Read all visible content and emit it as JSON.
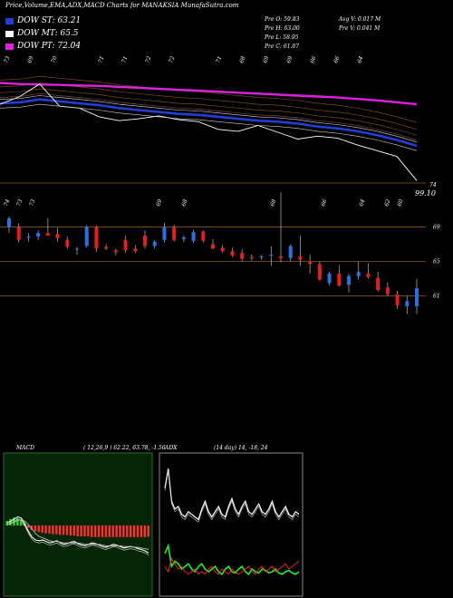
{
  "header": {
    "title": "Price,Volume,EMA,ADX,MACD Charts for MANAKSIA MunafaSutra.com"
  },
  "legend": [
    {
      "label": "DOW ST: 63.21",
      "color": "#1f3fd6"
    },
    {
      "label": "DOW MT: 65.5",
      "color": "#ffffff"
    },
    {
      "label": "DOW PT: 72.04",
      "color": "#e020e0"
    }
  ],
  "ohlc": {
    "open": "Pre  O: 59.83",
    "high": "Pre  H: 63.00",
    "low": "Pre  L: 58.95",
    "close": "Pre  C: 61.87",
    "avg_vol": "Avg V: 0.017 M",
    "pre_vol": "Pre  V: 0.041 M"
  },
  "chart_data": [
    {
      "type": "line",
      "panel": "ema",
      "side_label": "",
      "price_labels": [
        "74",
        "99.10"
      ],
      "top_labels": [
        "73",
        "69",
        "70",
        "",
        "71",
        "71",
        "72",
        "72",
        "",
        "71",
        "68",
        "69",
        "69",
        "66",
        "66",
        "64"
      ],
      "series": [
        {
          "name": "",
          "color": "#e020e0",
          "values": [
            72.6,
            72.5,
            72.45,
            72.4,
            72.35,
            72.3,
            72.2,
            72.1,
            72.0,
            71.9,
            71.8,
            71.7,
            71.6,
            71.5,
            71.4,
            71.3,
            71.2,
            71.1,
            70.95,
            70.8,
            70.6,
            70.4
          ]
        },
        {
          "name": "",
          "color": "#1f3fd6",
          "values": [
            70.5,
            70.6,
            70.9,
            70.7,
            70.5,
            70.3,
            70.0,
            69.8,
            69.6,
            69.4,
            69.3,
            69.1,
            68.9,
            68.7,
            68.6,
            68.4,
            68.1,
            67.9,
            67.6,
            67.2,
            66.7,
            66.1
          ]
        },
        {
          "name": "",
          "color": "#ffffff",
          "values": [
            70.4,
            71.2,
            72.5,
            70.2,
            70.0,
            69.1,
            68.7,
            68.9,
            69.2,
            68.8,
            68.6,
            67.8,
            67.6,
            68.2,
            67.5,
            66.8,
            67.1,
            66.9,
            66.2,
            65.6,
            65.0,
            62.5
          ]
        }
      ]
    },
    {
      "type": "candlestick",
      "panel": "price",
      "side_label": "",
      "y_ticks": [
        69,
        65,
        61
      ],
      "top_labels": [
        "74",
        "73",
        "73",
        "",
        "",
        "",
        "",
        "",
        "",
        "",
        "",
        "",
        "69",
        "",
        "68",
        "",
        "",
        "",
        "",
        "",
        "",
        "68",
        "",
        "",
        "",
        "66",
        "",
        "",
        "64",
        "",
        "62",
        "60"
      ],
      "candles": [
        {
          "o": 69.0,
          "h": 70.2,
          "l": 68.3,
          "c": 70.0
        },
        {
          "o": 69.0,
          "h": 69.4,
          "l": 67.2,
          "c": 67.5
        },
        {
          "o": 67.8,
          "h": 68.3,
          "l": 67.3,
          "c": 67.9
        },
        {
          "o": 67.9,
          "h": 68.6,
          "l": 67.5,
          "c": 68.3
        },
        {
          "o": 68.3,
          "h": 70.0,
          "l": 68.1,
          "c": 68.0
        },
        {
          "o": 68.2,
          "h": 68.9,
          "l": 67.3,
          "c": 67.7
        },
        {
          "o": 67.5,
          "h": 67.9,
          "l": 66.5,
          "c": 66.7
        },
        {
          "o": 66.4,
          "h": 66.7,
          "l": 65.8,
          "c": 66.5
        },
        {
          "o": 66.8,
          "h": 69.2,
          "l": 66.6,
          "c": 69.0
        },
        {
          "o": 69.0,
          "h": 69.2,
          "l": 66.1,
          "c": 66.5
        },
        {
          "o": 66.7,
          "h": 67.0,
          "l": 66.3,
          "c": 66.5
        },
        {
          "o": 66.3,
          "h": 66.5,
          "l": 65.7,
          "c": 66.1
        },
        {
          "o": 67.5,
          "h": 68.0,
          "l": 66.0,
          "c": 66.3
        },
        {
          "o": 66.5,
          "h": 66.9,
          "l": 66.0,
          "c": 66.2
        },
        {
          "o": 68.0,
          "h": 68.6,
          "l": 66.5,
          "c": 66.8
        },
        {
          "o": 66.8,
          "h": 67.5,
          "l": 66.5,
          "c": 67.3
        },
        {
          "o": 67.5,
          "h": 69.5,
          "l": 67.2,
          "c": 69.0
        },
        {
          "o": 69.0,
          "h": 69.3,
          "l": 67.3,
          "c": 67.5
        },
        {
          "o": 67.6,
          "h": 68.0,
          "l": 67.3,
          "c": 67.8
        },
        {
          "o": 67.4,
          "h": 68.7,
          "l": 67.2,
          "c": 68.4
        },
        {
          "o": 68.5,
          "h": 68.6,
          "l": 67.2,
          "c": 67.4
        },
        {
          "o": 67.0,
          "h": 67.6,
          "l": 66.4,
          "c": 66.5
        },
        {
          "o": 66.6,
          "h": 66.9,
          "l": 66.0,
          "c": 66.2
        },
        {
          "o": 66.2,
          "h": 66.6,
          "l": 65.5,
          "c": 65.7
        },
        {
          "o": 66.0,
          "h": 66.4,
          "l": 65.0,
          "c": 65.3
        },
        {
          "o": 65.5,
          "h": 65.8,
          "l": 65.1,
          "c": 65.4
        },
        {
          "o": 65.5,
          "h": 65.7,
          "l": 65.2,
          "c": 65.6
        },
        {
          "o": 65.8,
          "h": 66.8,
          "l": 64.5,
          "c": 65.8
        },
        {
          "o": 65.6,
          "h": 73.0,
          "l": 64.9,
          "c": 65.4
        },
        {
          "o": 65.4,
          "h": 67.0,
          "l": 65.0,
          "c": 66.8
        },
        {
          "o": 65.6,
          "h": 68.0,
          "l": 64.5,
          "c": 65.2
        },
        {
          "o": 65.0,
          "h": 65.8,
          "l": 63.6,
          "c": 64.7
        },
        {
          "o": 64.7,
          "h": 65.0,
          "l": 62.8,
          "c": 62.9
        },
        {
          "o": 62.5,
          "h": 63.8,
          "l": 62.2,
          "c": 63.6
        },
        {
          "o": 63.6,
          "h": 64.6,
          "l": 62.1,
          "c": 62.2
        },
        {
          "o": 62.3,
          "h": 63.6,
          "l": 61.4,
          "c": 63.3
        },
        {
          "o": 63.3,
          "h": 65.0,
          "l": 62.9,
          "c": 63.8
        },
        {
          "o": 63.6,
          "h": 64.8,
          "l": 63.0,
          "c": 63.2
        },
        {
          "o": 63.1,
          "h": 63.8,
          "l": 61.5,
          "c": 61.7
        },
        {
          "o": 62.0,
          "h": 62.6,
          "l": 61.0,
          "c": 61.2
        },
        {
          "o": 61.2,
          "h": 61.6,
          "l": 59.5,
          "c": 59.9
        },
        {
          "o": 59.8,
          "h": 61.0,
          "l": 58.9,
          "c": 60.4
        },
        {
          "o": 59.8,
          "h": 63.0,
          "l": 58.9,
          "c": 61.9
        }
      ]
    },
    {
      "type": "macd",
      "panel": "macd",
      "label": "MACD",
      "params": "( 12,26,9 ) 62.22,  63.78,  -1.56",
      "histogram": [
        0.6,
        0.9,
        1.1,
        1.0,
        0.8,
        0.3,
        -0.3,
        -0.6,
        -0.8,
        -0.9,
        -1.0,
        -1.1,
        -1.1,
        -1.2,
        -1.2,
        -1.3,
        -1.3,
        -1.3,
        -1.4,
        -1.4,
        -1.5,
        -1.5,
        -1.5,
        -1.5,
        -1.6,
        -1.6,
        -1.6,
        -1.6,
        -1.6,
        -1.6,
        -1.6,
        -1.6,
        -1.6,
        -1.6,
        -1.6,
        -1.6,
        -1.6,
        -1.6,
        -1.6,
        -1.6,
        -1.56
      ],
      "macd": [
        0.4,
        0.6,
        0.9,
        1.2,
        1.0,
        0.2,
        -0.8,
        -1.6,
        -2.0,
        -2.1,
        -2.0,
        -2.2,
        -2.4,
        -2.3,
        -2.1,
        -2.4,
        -2.6,
        -2.5,
        -2.3,
        -2.2,
        -2.5,
        -2.7,
        -2.8,
        -2.6,
        -2.4,
        -2.5,
        -2.7,
        -2.9,
        -3.0,
        -2.8,
        -2.6,
        -2.7,
        -2.9,
        -3.1,
        -3.0,
        -2.9,
        -3.0,
        -3.2,
        -3.3,
        -3.5,
        -3.8
      ],
      "signal": [
        0.2,
        0.3,
        0.5,
        0.7,
        0.8,
        0.6,
        0.1,
        -0.5,
        -1.1,
        -1.5,
        -1.7,
        -1.9,
        -2.1,
        -2.2,
        -2.2,
        -2.3,
        -2.4,
        -2.4,
        -2.4,
        -2.4,
        -2.4,
        -2.5,
        -2.6,
        -2.6,
        -2.6,
        -2.6,
        -2.6,
        -2.7,
        -2.8,
        -2.8,
        -2.8,
        -2.8,
        -2.8,
        -2.9,
        -2.9,
        -2.9,
        -3.0,
        -3.0,
        -3.1,
        -3.2,
        -3.3
      ]
    },
    {
      "type": "adx",
      "panel": "adx",
      "label": "ADX",
      "params": "(14 day) 14, -18, 24",
      "adx": [
        80,
        95,
        70,
        64,
        66,
        60,
        58,
        62,
        60,
        58,
        56,
        64,
        70,
        62,
        58,
        62,
        66,
        60,
        58,
        66,
        72,
        64,
        60,
        66,
        70,
        62,
        60,
        64,
        68,
        62,
        60,
        64,
        70,
        62,
        58,
        62,
        66,
        60,
        58,
        62,
        60
      ],
      "plus_di": [
        30,
        36,
        20,
        24,
        22,
        18,
        20,
        22,
        18,
        16,
        20,
        22,
        18,
        16,
        18,
        20,
        16,
        14,
        18,
        20,
        16,
        15,
        18,
        20,
        16,
        14,
        18,
        16,
        15,
        18,
        17,
        15,
        16,
        18,
        15,
        14,
        16,
        17,
        15,
        14,
        16
      ],
      "minus_di": [
        20,
        16,
        26,
        22,
        18,
        20,
        16,
        14,
        16,
        18,
        14,
        16,
        14,
        18,
        20,
        16,
        14,
        18,
        16,
        14,
        18,
        16,
        14,
        16,
        18,
        20,
        16,
        14,
        18,
        20,
        16,
        18,
        20,
        16,
        18,
        20,
        22,
        18,
        20,
        22,
        24
      ]
    }
  ]
}
